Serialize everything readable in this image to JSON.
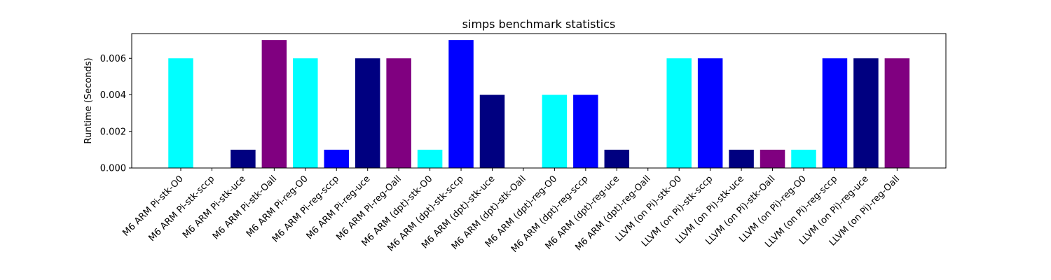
{
  "chart_data": {
    "type": "bar",
    "title": "simps benchmark statistics",
    "xlabel": "",
    "ylabel": "Runtime (Seconds)",
    "ylim": [
      0,
      0.00735
    ],
    "yticks": [
      0.0,
      0.002,
      0.004,
      0.006
    ],
    "ytick_labels": [
      "0.000",
      "0.002",
      "0.004",
      "0.006"
    ],
    "grid": false,
    "categories": [
      "M6 ARM Pi-stk-O0",
      "M6 ARM Pi-stk-sccp",
      "M6 ARM Pi-stk-uce",
      "M6 ARM Pi-stk-Oall",
      "M6 ARM Pi-reg-O0",
      "M6 ARM Pi-reg-sccp",
      "M6 ARM Pi-reg-uce",
      "M6 ARM Pi-reg-Oall",
      "M6 ARM (dpt)-stk-O0",
      "M6 ARM (dpt)-stk-sccp",
      "M6 ARM (dpt)-stk-uce",
      "M6 ARM (dpt)-stk-Oall",
      "M6 ARM (dpt)-reg-O0",
      "M6 ARM (dpt)-reg-sccp",
      "M6 ARM (dpt)-reg-uce",
      "M6 ARM (dpt)-reg-Oall",
      "LLVM (on Pi)-stk-O0",
      "LLVM (on Pi)-stk-sccp",
      "LLVM (on Pi)-stk-uce",
      "LLVM (on Pi)-stk-Oall",
      "LLVM (on Pi)-reg-O0",
      "LLVM (on Pi)-reg-sccp",
      "LLVM (on Pi)-reg-uce",
      "LLVM (on Pi)-reg-Oall"
    ],
    "values": [
      0.006,
      0.0,
      0.001,
      0.007,
      0.006,
      0.001,
      0.006,
      0.006,
      0.001,
      0.007,
      0.004,
      0.0,
      0.004,
      0.004,
      0.001,
      0.0,
      0.006,
      0.006,
      0.001,
      0.001,
      0.001,
      0.006,
      0.006,
      0.006
    ],
    "colors": [
      "#00ffff",
      "#0000ff",
      "#000080",
      "#800080",
      "#00ffff",
      "#0000ff",
      "#000080",
      "#800080",
      "#00ffff",
      "#0000ff",
      "#000080",
      "#800080",
      "#00ffff",
      "#0000ff",
      "#000080",
      "#800080",
      "#00ffff",
      "#0000ff",
      "#000080",
      "#800080",
      "#00ffff",
      "#0000ff",
      "#000080",
      "#800080"
    ]
  }
}
